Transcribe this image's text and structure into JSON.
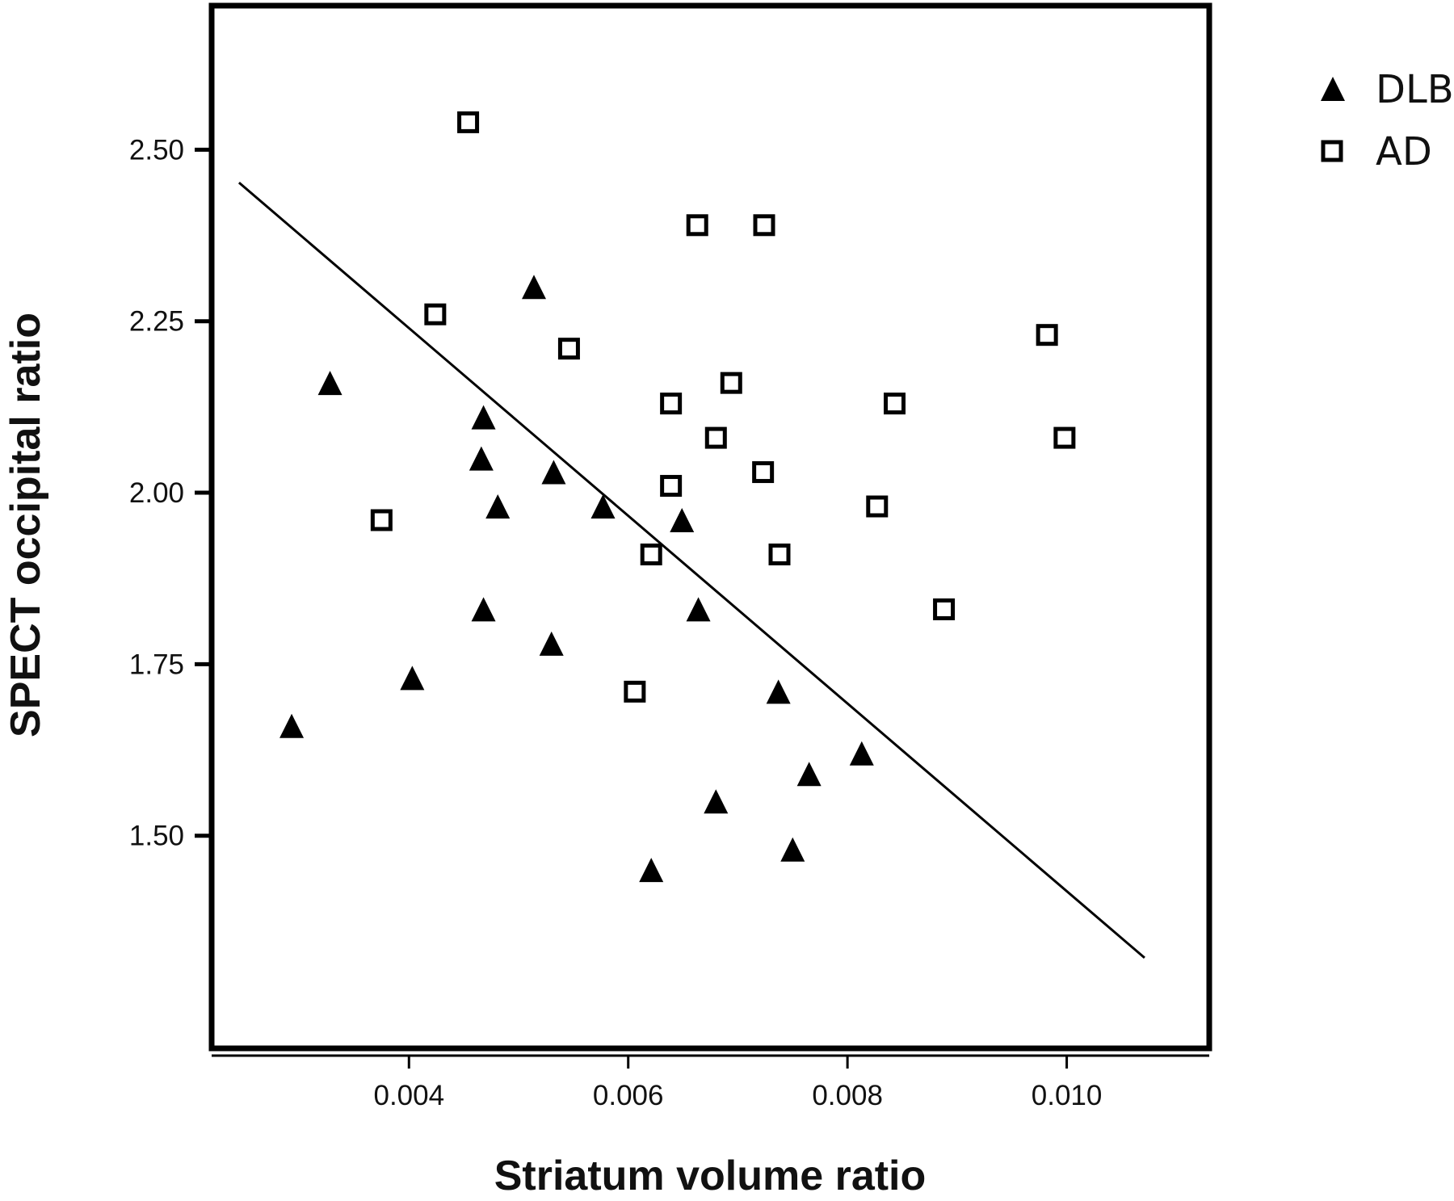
{
  "chart_data": {
    "type": "scatter",
    "title": "",
    "xlabel": "Striatum volume ratio",
    "ylabel": "SPECT occipital ratio",
    "xlim": [
      0.0022,
      0.0113
    ],
    "ylim": [
      1.19,
      2.71
    ],
    "x_ticks": [
      0.004,
      0.006,
      0.008,
      0.01
    ],
    "x_tick_labels": [
      "0.004",
      "0.006",
      "0.008",
      "0.010"
    ],
    "y_ticks": [
      1.5,
      1.75,
      2.0,
      2.25,
      2.5
    ],
    "y_tick_labels": [
      "1.50",
      "1.75",
      "2.00",
      "2.25",
      "2.50"
    ],
    "grid": false,
    "legend_position": "top-right, outside plot",
    "series": [
      {
        "name": "DLB",
        "marker": "filled-triangle",
        "color": "#000000",
        "points": [
          [
            0.00293,
            1.66
          ],
          [
            0.00328,
            2.16
          ],
          [
            0.00403,
            1.73
          ],
          [
            0.00466,
            2.05
          ],
          [
            0.00468,
            2.11
          ],
          [
            0.00468,
            1.83
          ],
          [
            0.00481,
            1.98
          ],
          [
            0.00514,
            2.3
          ],
          [
            0.0053,
            1.78
          ],
          [
            0.00532,
            2.03
          ],
          [
            0.00577,
            1.98
          ],
          [
            0.00621,
            1.45
          ],
          [
            0.00649,
            1.96
          ],
          [
            0.00664,
            1.83
          ],
          [
            0.0068,
            1.55
          ],
          [
            0.00737,
            1.71
          ],
          [
            0.0075,
            1.48
          ],
          [
            0.00765,
            1.59
          ],
          [
            0.00813,
            1.62
          ]
        ]
      },
      {
        "name": "AD",
        "marker": "open-square",
        "color": "#000000",
        "points": [
          [
            0.00375,
            1.96
          ],
          [
            0.00424,
            2.26
          ],
          [
            0.00454,
            2.54
          ],
          [
            0.00546,
            2.21
          ],
          [
            0.00606,
            1.71
          ],
          [
            0.00621,
            1.91
          ],
          [
            0.00639,
            2.01
          ],
          [
            0.00639,
            2.13
          ],
          [
            0.00663,
            2.39
          ],
          [
            0.0068,
            2.08
          ],
          [
            0.00694,
            2.16
          ],
          [
            0.00723,
            2.03
          ],
          [
            0.00724,
            2.39
          ],
          [
            0.00738,
            1.91
          ],
          [
            0.00827,
            1.98
          ],
          [
            0.00843,
            2.13
          ],
          [
            0.00888,
            1.83
          ],
          [
            0.00982,
            2.23
          ],
          [
            0.00998,
            2.08
          ]
        ]
      }
    ],
    "fit_line": {
      "x": [
        0.00245,
        0.01071
      ],
      "y": [
        2.452,
        1.322
      ]
    }
  }
}
